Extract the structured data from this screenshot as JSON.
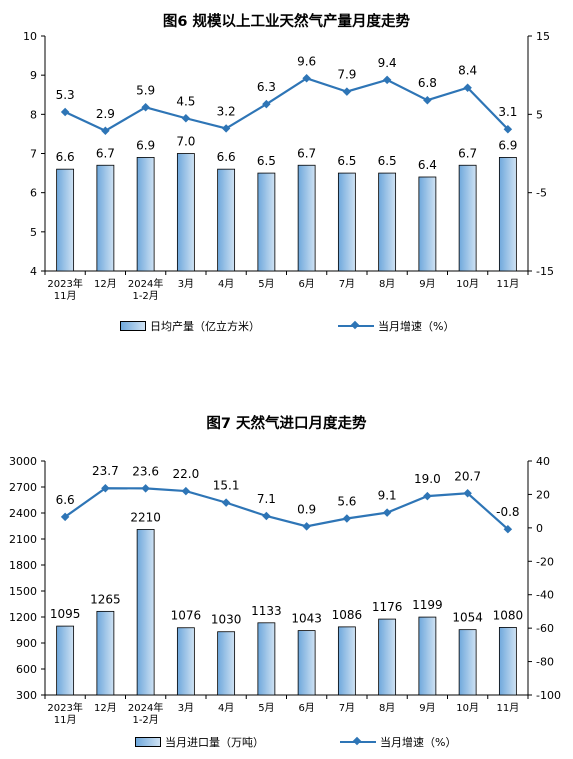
{
  "chart_data": [
    {
      "type": "bar",
      "title": "图6  规模以上工业天然气产量月度走势",
      "categories": [
        [
          "2023年",
          "11月"
        ],
        [
          "12月"
        ],
        [
          "2024年",
          "1-2月"
        ],
        [
          "3月"
        ],
        [
          "4月"
        ],
        [
          "5月"
        ],
        [
          "6月"
        ],
        [
          "7月"
        ],
        [
          "8月"
        ],
        [
          "9月"
        ],
        [
          "10月"
        ],
        [
          "11月"
        ]
      ],
      "series": [
        {
          "name": "日均产量（亿立方米）",
          "kind": "bar",
          "axis": "left",
          "values": [
            6.6,
            6.7,
            6.9,
            7.0,
            6.6,
            6.5,
            6.7,
            6.5,
            6.5,
            6.4,
            6.7,
            6.9
          ],
          "labels": [
            "6.6",
            "6.7",
            "6.9",
            "7.0",
            "6.6",
            "6.5",
            "6.7",
            "6.5",
            "6.5",
            "6.4",
            "6.7",
            "6.9"
          ]
        },
        {
          "name": "当月增速（%）",
          "kind": "line",
          "axis": "right",
          "values": [
            5.3,
            2.9,
            5.9,
            4.5,
            3.2,
            6.3,
            9.6,
            7.9,
            9.4,
            6.8,
            8.4,
            3.1
          ],
          "labels": [
            "5.3",
            "2.9",
            "5.9",
            "4.5",
            "3.2",
            "6.3",
            "9.6",
            "7.9",
            "9.4",
            "6.8",
            "8.4",
            "3.1"
          ]
        }
      ],
      "ylim_left": [
        4,
        10
      ],
      "yticks_left": [
        4,
        5,
        6,
        7,
        8,
        9,
        10
      ],
      "ylim_right": [
        -15,
        15
      ],
      "yticks_right": [
        -15,
        -5,
        5,
        15
      ],
      "legend_position": "bottom",
      "grid": false
    },
    {
      "type": "bar",
      "title": "图7  天然气进口月度走势",
      "categories": [
        [
          "2023年",
          "11月"
        ],
        [
          "12月"
        ],
        [
          "2024年",
          "1-2月"
        ],
        [
          "3月"
        ],
        [
          "4月"
        ],
        [
          "5月"
        ],
        [
          "6月"
        ],
        [
          "7月"
        ],
        [
          "8月"
        ],
        [
          "9月"
        ],
        [
          "10月"
        ],
        [
          "11月"
        ]
      ],
      "series": [
        {
          "name": "当月进口量（万吨）",
          "kind": "bar",
          "axis": "left",
          "values": [
            1095,
            1265,
            2210,
            1076,
            1030,
            1133,
            1043,
            1086,
            1176,
            1199,
            1054,
            1080
          ],
          "labels": [
            "1095",
            "1265",
            "2210",
            "1076",
            "1030",
            "1133",
            "1043",
            "1086",
            "1176",
            "1199",
            "1054",
            "1080"
          ]
        },
        {
          "name": "当月增速（%）",
          "kind": "line",
          "axis": "right",
          "values": [
            6.6,
            23.7,
            23.6,
            22.0,
            15.1,
            7.1,
            0.9,
            5.6,
            9.1,
            19.0,
            20.7,
            -0.8
          ],
          "labels": [
            "6.6",
            "23.7",
            "23.6",
            "22.0",
            "15.1",
            "7.1",
            "0.9",
            "5.6",
            "9.1",
            "19.0",
            "20.7",
            "-0.8"
          ]
        }
      ],
      "ylim_left": [
        300,
        3000
      ],
      "yticks_left": [
        300,
        600,
        900,
        1200,
        1500,
        1800,
        2100,
        2400,
        2700,
        3000
      ],
      "ylim_right": [
        -100,
        40
      ],
      "yticks_right": [
        -100,
        -80,
        -60,
        -40,
        -20,
        0,
        20,
        40
      ],
      "legend_position": "bottom",
      "grid": false
    }
  ],
  "colors": {
    "bar_dark": "#6fa8dc",
    "bar_light": "#cfe2f3",
    "line": "#2e75b6"
  }
}
